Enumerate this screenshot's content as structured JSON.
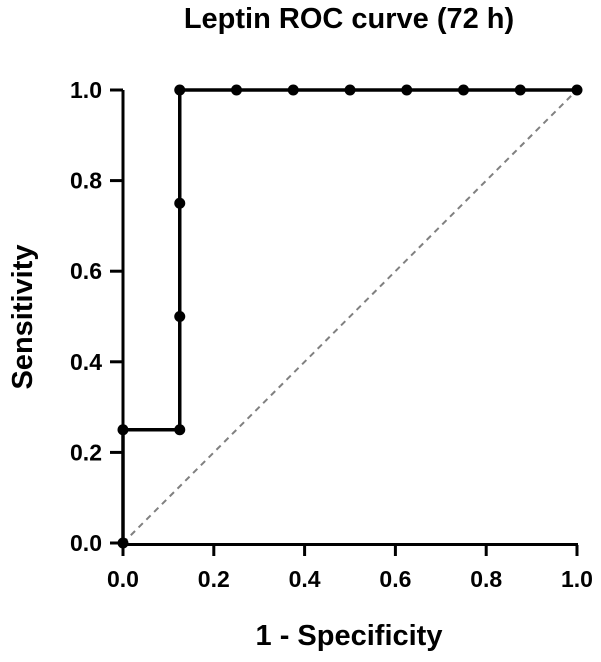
{
  "chart_data": {
    "type": "line",
    "title": "Leptin ROC curve (72 h)",
    "xlabel": "1 - Specificity",
    "ylabel": "Sensitivity",
    "xlim": [
      0,
      1
    ],
    "ylim": [
      0,
      1
    ],
    "x_ticks": [
      "0.0",
      "0.2",
      "0.4",
      "0.6",
      "0.8",
      "1.0"
    ],
    "y_ticks": [
      "0.0",
      "0.2",
      "0.4",
      "0.6",
      "0.8",
      "1.0"
    ],
    "grid": false,
    "legend": "none",
    "series": [
      {
        "style": "solid",
        "color": "#000000",
        "marker": "circle",
        "points": [
          {
            "x": 0.0,
            "y": 0.0
          },
          {
            "x": 0.0,
            "y": 0.25
          },
          {
            "x": 0.125,
            "y": 0.25
          },
          {
            "x": 0.125,
            "y": 0.5
          },
          {
            "x": 0.125,
            "y": 0.75
          },
          {
            "x": 0.125,
            "y": 1.0
          },
          {
            "x": 0.25,
            "y": 1.0
          },
          {
            "x": 0.375,
            "y": 1.0
          },
          {
            "x": 0.5,
            "y": 1.0
          },
          {
            "x": 0.625,
            "y": 1.0
          },
          {
            "x": 0.75,
            "y": 1.0
          },
          {
            "x": 0.875,
            "y": 1.0
          },
          {
            "x": 1.0,
            "y": 1.0
          }
        ]
      },
      {
        "style": "dashed",
        "color": "#808080",
        "marker": "none",
        "points": [
          {
            "x": 0.0,
            "y": 0.0
          },
          {
            "x": 1.0,
            "y": 1.0
          }
        ]
      }
    ]
  }
}
